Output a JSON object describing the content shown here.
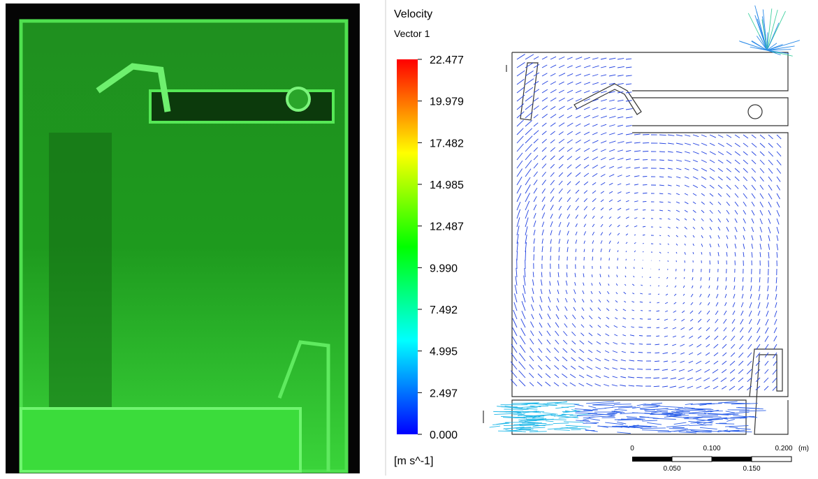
{
  "legend": {
    "title": "Velocity",
    "subtitle": "Vector 1",
    "ticks": [
      "22.477",
      "19.979",
      "17.482",
      "14.985",
      "12.487",
      "9.990",
      "7.492",
      "4.995",
      "2.497",
      "0.000"
    ],
    "unit": "[m s^-1]"
  },
  "scale_bar": {
    "top_labels": [
      "0",
      "0.100",
      "0.200"
    ],
    "unit": "(m)",
    "bottom_labels": [
      "0.050",
      "0.150"
    ]
  }
}
